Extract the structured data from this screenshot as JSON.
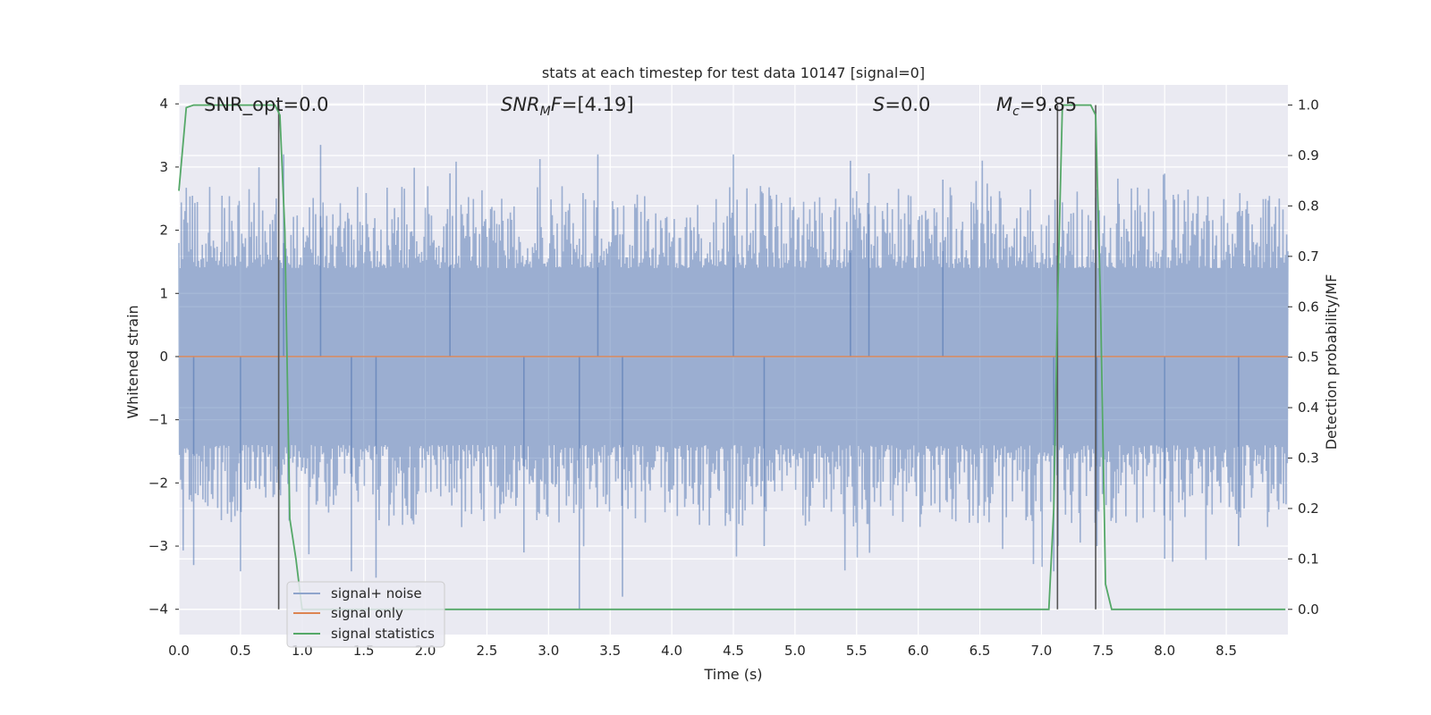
{
  "chart_data": {
    "type": "line",
    "title": "stats at each timestep for test data 10147 [signal=0]",
    "xlabel": "Time (s)",
    "ylabel_left": "Whitened strain",
    "ylabel_right": "Detection probability/MF",
    "xlim": [
      0.0,
      9.0
    ],
    "ylim_left": [
      -4.4,
      4.3
    ],
    "ylim_right": [
      -0.05,
      1.04
    ],
    "xticks": [
      "0.0",
      "0.5",
      "1.0",
      "1.5",
      "2.0",
      "2.5",
      "3.0",
      "3.5",
      "4.0",
      "4.5",
      "5.0",
      "5.5",
      "6.0",
      "6.5",
      "7.0",
      "7.5",
      "8.0",
      "8.5"
    ],
    "yticks_left": [
      "4",
      "3",
      "2",
      "1",
      "0",
      "−1",
      "−2",
      "−3",
      "−4"
    ],
    "yticks_right": [
      "1.0",
      "0.9",
      "0.8",
      "0.7",
      "0.6",
      "0.5",
      "0.4",
      "0.3",
      "0.2",
      "0.1",
      "0.0"
    ],
    "grid": true,
    "annotations": {
      "snr_opt": "SNR_opt=0.0",
      "snr_mf": "[4.19]",
      "s_value": "=0.0",
      "mc_value": "=9.85"
    },
    "legend": {
      "placement": "lower-left",
      "entries": [
        "signal+ noise",
        "signal only",
        "signal statistics"
      ]
    },
    "series": [
      {
        "name": "signal+ noise",
        "axis": "left",
        "color": "#4c72b0",
        "style": "dense noise, approx |amplitude| 1.5–3.3, extremes near 3.4 and −4.0",
        "peaks_x": [
          0.12,
          0.5,
          0.85,
          1.15,
          1.4,
          1.6,
          2.2,
          2.8,
          3.25,
          3.4,
          3.6,
          4.5,
          4.75,
          5.45,
          5.6,
          6.2,
          7.1,
          7.45,
          8.0,
          8.6
        ],
        "peaks_y": [
          -3.3,
          -3.4,
          3.2,
          3.35,
          -3.4,
          -3.5,
          2.9,
          -3.1,
          -4.0,
          3.2,
          -3.8,
          3.2,
          -3.0,
          3.1,
          2.9,
          2.8,
          -3.4,
          -3.0,
          -3.2,
          -3.0
        ]
      },
      {
        "name": "signal only",
        "axis": "left",
        "color": "#dd8452",
        "x": [
          0.0,
          9.0
        ],
        "y": [
          0.0,
          0.0
        ]
      },
      {
        "name": "signal statistics",
        "axis": "right",
        "color": "#55a868",
        "x": [
          0.0,
          0.06,
          0.12,
          0.2,
          0.4,
          0.6,
          0.78,
          0.82,
          0.86,
          0.9,
          0.95,
          1.0,
          1.1,
          2.0,
          4.0,
          6.0,
          7.0,
          7.06,
          7.1,
          7.13,
          7.17,
          7.2,
          7.3,
          7.4,
          7.44,
          7.48,
          7.52,
          7.57,
          8.0,
          8.98
        ],
        "y": [
          0.83,
          0.995,
          1.0,
          1.0,
          1.0,
          1.0,
          1.0,
          0.98,
          0.75,
          0.18,
          0.1,
          0.0,
          0.0,
          0.0,
          0.0,
          0.0,
          0.0,
          0.0,
          0.2,
          0.6,
          1.0,
          1.0,
          1.0,
          1.0,
          0.98,
          0.6,
          0.05,
          0.0,
          0.0,
          0.0
        ]
      }
    ],
    "vertical_lines_x": [
      0.81,
      7.13,
      7.44
    ]
  }
}
